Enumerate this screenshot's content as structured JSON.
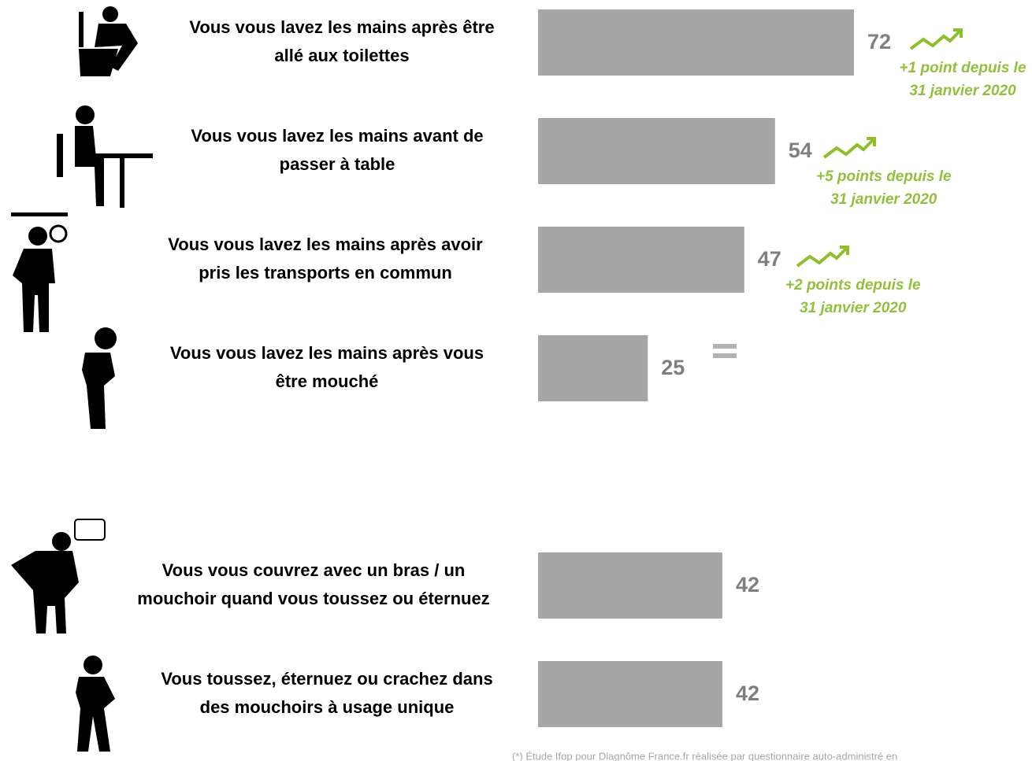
{
  "chart_data": {
    "type": "bar",
    "categories": [
      [
        "Vous vous lavez les mains après être",
        "allé aux toilettes"
      ],
      [
        "Vous vous lavez les mains avant de",
        "passer à table"
      ],
      [
        "Vous vous lavez les mains après avoir",
        "pris les transports en commun"
      ],
      [
        "Vous vous lavez les mains après vous",
        "être mouché"
      ],
      [
        "Vous vous couvrez avec un bras / un",
        "mouchoir quand vous toussez ou éternuez"
      ],
      [
        "Vous toussez, éternuez ou crachez dans",
        "des mouchoirs à usage unique"
      ]
    ],
    "values": [
      72,
      54,
      47,
      25,
      42,
      42
    ],
    "color": "#a6a6a6",
    "annotations": [
      [
        "+1 point depuis le",
        "31 janvier 2020"
      ],
      [
        "+5 points depuis le",
        "31 janvier 2020"
      ],
      [
        "+2 points depuis le",
        "31 janvier 2020"
      ],
      null,
      null,
      null
    ],
    "footnote": "(*) Étude Ifop pour Diagnôme France.fr réalisée par questionnaire auto-administré en"
  }
}
